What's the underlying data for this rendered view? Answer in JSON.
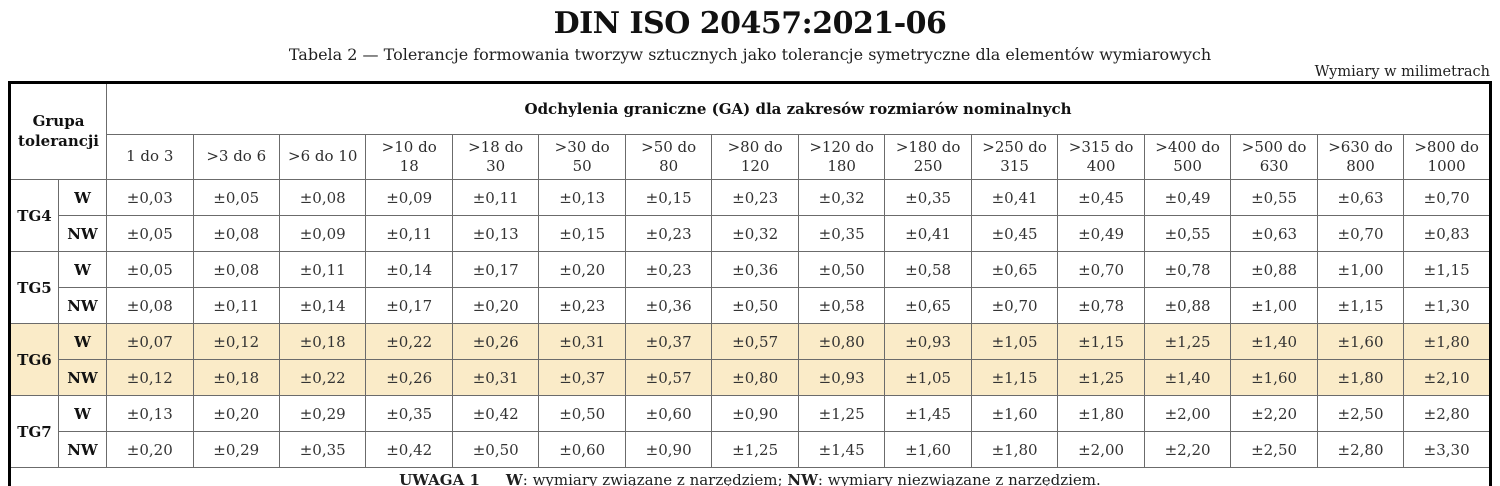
{
  "title": "DIN ISO 20457:2021-06",
  "caption": "Tabela 2 — Tolerancje formowania tworzyw sztucznych jako tolerancje symetryczne dla elementów wymiarowych",
  "units_note": "Wymiary w milimetrach",
  "colors": {
    "highlight_row": "#faebc8",
    "grid_line": "#6b6b6b",
    "outer_border": "#000000"
  },
  "table": {
    "group_header": "Grupa tolerancji",
    "span_header": "Odchylenia graniczne (GA) dla zakresów rozmiarów nominalnych",
    "size_ranges": [
      {
        "line1": "1 do 3",
        "line2": ""
      },
      {
        "line1": ">3 do 6",
        "line2": ""
      },
      {
        "line1": ">6 do 10",
        "line2": ""
      },
      {
        "line1": ">10 do",
        "line2": "18"
      },
      {
        "line1": ">18 do",
        "line2": "30"
      },
      {
        "line1": ">30 do",
        "line2": "50"
      },
      {
        "line1": ">50 do",
        "line2": "80"
      },
      {
        "line1": ">80 do",
        "line2": "120"
      },
      {
        "line1": ">120 do",
        "line2": "180"
      },
      {
        "line1": ">180 do",
        "line2": "250"
      },
      {
        "line1": ">250 do",
        "line2": "315"
      },
      {
        "line1": ">315 do",
        "line2": "400"
      },
      {
        "line1": ">400 do",
        "line2": "500"
      },
      {
        "line1": ">500 do",
        "line2": "630"
      },
      {
        "line1": ">630 do",
        "line2": "800"
      },
      {
        "line1": ">800 do",
        "line2": "1000"
      }
    ],
    "groups": [
      {
        "name": "TG4",
        "highlighted": false,
        "rows": [
          {
            "type": "W",
            "values": [
              "±0,03",
              "±0,05",
              "±0,08",
              "±0,09",
              "±0,11",
              "±0,13",
              "±0,15",
              "±0,23",
              "±0,32",
              "±0,35",
              "±0,41",
              "±0,45",
              "±0,49",
              "±0,55",
              "±0,63",
              "±0,70"
            ]
          },
          {
            "type": "NW",
            "values": [
              "±0,05",
              "±0,08",
              "±0,09",
              "±0,11",
              "±0,13",
              "±0,15",
              "±0,23",
              "±0,32",
              "±0,35",
              "±0,41",
              "±0,45",
              "±0,49",
              "±0,55",
              "±0,63",
              "±0,70",
              "±0,83"
            ]
          }
        ]
      },
      {
        "name": "TG5",
        "highlighted": false,
        "rows": [
          {
            "type": "W",
            "values": [
              "±0,05",
              "±0,08",
              "±0,11",
              "±0,14",
              "±0,17",
              "±0,20",
              "±0,23",
              "±0,36",
              "±0,50",
              "±0,58",
              "±0,65",
              "±0,70",
              "±0,78",
              "±0,88",
              "±1,00",
              "±1,15"
            ]
          },
          {
            "type": "NW",
            "values": [
              "±0,08",
              "±0,11",
              "±0,14",
              "±0,17",
              "±0,20",
              "±0,23",
              "±0,36",
              "±0,50",
              "±0,58",
              "±0,65",
              "±0,70",
              "±0,78",
              "±0,88",
              "±1,00",
              "±1,15",
              "±1,30"
            ]
          }
        ]
      },
      {
        "name": "TG6",
        "highlighted": true,
        "rows": [
          {
            "type": "W",
            "values": [
              "±0,07",
              "±0,12",
              "±0,18",
              "±0,22",
              "±0,26",
              "±0,31",
              "±0,37",
              "±0,57",
              "±0,80",
              "±0,93",
              "±1,05",
              "±1,15",
              "±1,25",
              "±1,40",
              "±1,60",
              "±1,80"
            ]
          },
          {
            "type": "NW",
            "values": [
              "±0,12",
              "±0,18",
              "±0,22",
              "±0,26",
              "±0,31",
              "±0,37",
              "±0,57",
              "±0,80",
              "±0,93",
              "±1,05",
              "±1,15",
              "±1,25",
              "±1,40",
              "±1,60",
              "±1,80",
              "±2,10"
            ]
          }
        ]
      },
      {
        "name": "TG7",
        "highlighted": false,
        "rows": [
          {
            "type": "W",
            "values": [
              "±0,13",
              "±0,20",
              "±0,29",
              "±0,35",
              "±0,42",
              "±0,50",
              "±0,60",
              "±0,90",
              "±1,25",
              "±1,45",
              "±1,60",
              "±1,80",
              "±2,00",
              "±2,20",
              "±2,50",
              "±2,80"
            ]
          },
          {
            "type": "NW",
            "values": [
              "±0,20",
              "±0,29",
              "±0,35",
              "±0,42",
              "±0,50",
              "±0,60",
              "±0,90",
              "±1,25",
              "±1,45",
              "±1,60",
              "±1,80",
              "±2,00",
              "±2,20",
              "±2,50",
              "±2,80",
              "±3,30"
            ]
          }
        ]
      }
    ],
    "note": {
      "label": "UWAGA 1",
      "w_term": "W",
      "w_text": ": wymiary związane z narzędziem; ",
      "nw_term": "NW",
      "nw_text": ": wymiary niezwiązane z narzędziem."
    }
  }
}
